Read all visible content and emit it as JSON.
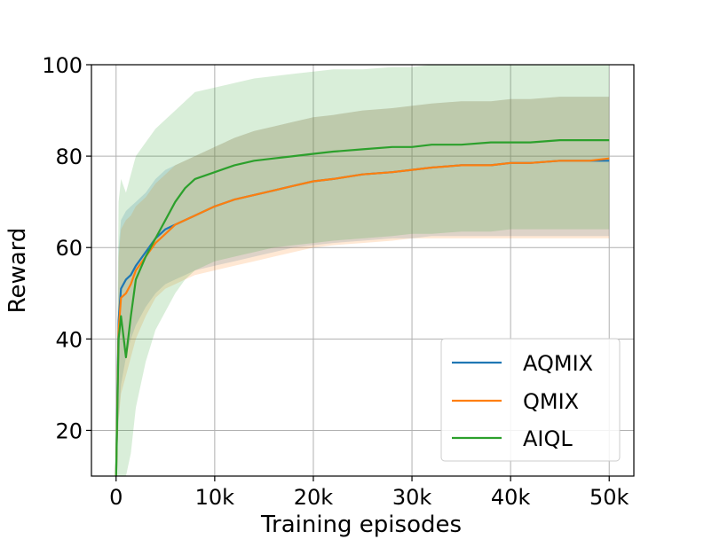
{
  "chart_data": {
    "type": "line",
    "xlabel": "Training episodes",
    "ylabel": "Reward",
    "xlim": [
      -2500,
      52500
    ],
    "ylim": [
      10,
      100
    ],
    "grid": true,
    "x_ticks": [
      0,
      10000,
      20000,
      30000,
      40000,
      50000
    ],
    "x_tick_labels": [
      "0",
      "10k",
      "20k",
      "30k",
      "40k",
      "50k"
    ],
    "y_ticks": [
      20,
      40,
      60,
      80,
      100
    ],
    "y_tick_labels": [
      "20",
      "40",
      "60",
      "80",
      "100"
    ],
    "legend_position": "lower-right",
    "x": [
      0,
      250,
      500,
      1000,
      1500,
      2000,
      3000,
      4000,
      5000,
      6000,
      7000,
      8000,
      10000,
      12000,
      14000,
      16000,
      18000,
      20000,
      22000,
      25000,
      28000,
      30000,
      32000,
      35000,
      38000,
      40000,
      42000,
      45000,
      48000,
      50000
    ],
    "series": [
      {
        "name": "AQMIX",
        "color": "#1f77b4",
        "values": [
          10,
          44,
          51,
          53,
          54,
          56,
          59,
          62,
          64,
          65,
          66,
          67,
          69,
          70.5,
          71.5,
          72.5,
          73.5,
          74.5,
          75,
          76,
          76.5,
          77,
          77.5,
          78,
          78,
          78.5,
          78.5,
          79,
          79,
          79
        ],
        "band_low": [
          10,
          22,
          30,
          36,
          40,
          43,
          47,
          50,
          52,
          53,
          54,
          55,
          56,
          57,
          58,
          59,
          60,
          60.5,
          61,
          61.5,
          62,
          62,
          62.5,
          62.5,
          62.5,
          62.5,
          62.5,
          62.5,
          62.5,
          62.5
        ],
        "band_high": [
          10,
          60,
          66,
          68,
          69,
          70,
          72,
          75,
          77,
          78,
          79,
          80,
          82,
          84,
          85.5,
          86.5,
          87.5,
          88.5,
          89,
          90,
          90.5,
          91,
          91.5,
          92,
          92,
          92.5,
          92.5,
          93,
          93,
          93
        ]
      },
      {
        "name": "QMIX",
        "color": "#ff7f0e",
        "values": [
          10,
          42,
          49,
          50,
          52,
          55,
          58,
          61,
          63,
          65,
          66,
          67,
          69,
          70.5,
          71.5,
          72.5,
          73.5,
          74.5,
          75,
          76,
          76.5,
          77,
          77.5,
          78,
          78,
          78.5,
          78.5,
          79,
          79,
          79.5
        ],
        "band_low": [
          10,
          22,
          28,
          32,
          36,
          40,
          45,
          49,
          51,
          52,
          53,
          54,
          55,
          56,
          57,
          58,
          59,
          60,
          60.5,
          61,
          61.5,
          62,
          62,
          62,
          62,
          62,
          62,
          62,
          62,
          62
        ],
        "band_high": [
          10,
          58,
          64,
          66,
          67,
          69,
          71,
          74,
          76,
          78,
          79,
          80,
          82,
          84,
          85.5,
          86.5,
          87.5,
          88.5,
          89,
          90,
          90.5,
          91,
          91.5,
          92,
          92,
          92.5,
          92.5,
          93,
          93,
          93
        ]
      },
      {
        "name": "AIQL",
        "color": "#2ca02c",
        "values": [
          10,
          40,
          45,
          36,
          45,
          53,
          58,
          62,
          66,
          70,
          73,
          75,
          76.5,
          78,
          79,
          79.5,
          80,
          80.5,
          81,
          81.5,
          82,
          82,
          82.5,
          82.5,
          83,
          83,
          83,
          83.5,
          83.5,
          83.5
        ],
        "band_low": [
          10,
          8,
          8,
          8,
          15,
          25,
          35,
          42,
          46,
          50,
          53,
          55,
          57,
          58,
          59,
          60,
          60.5,
          61,
          61.5,
          62,
          62.5,
          63,
          63,
          63.5,
          63.5,
          64,
          64,
          64,
          64,
          64
        ],
        "band_high": [
          10,
          70,
          75,
          72,
          76,
          80,
          83,
          86,
          88,
          90,
          92,
          94,
          95,
          96,
          97,
          97.5,
          98,
          98.5,
          99,
          99,
          99.5,
          99.5,
          100,
          100,
          100,
          100,
          100,
          100,
          100,
          100
        ]
      }
    ]
  }
}
